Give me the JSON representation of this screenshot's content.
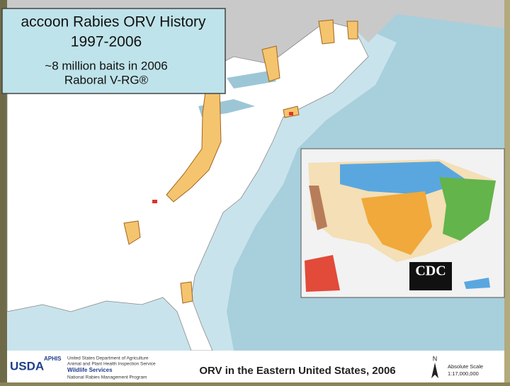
{
  "title_box": {
    "title": "accoon Rabies ORV History",
    "years": "1997-2006",
    "baits": "~8 million baits in 2006",
    "vaccine": "Raboral V-RG®"
  },
  "inset": {
    "logo": "CDC"
  },
  "footer": {
    "usda": "USDA",
    "aphis": "APHIS",
    "agency_lines": [
      "United States Department of Agriculture",
      "Animal and Plant Health Inspection Service"
    ],
    "wildlife": "Wildlife Services",
    "program": "National Rabies Management Program",
    "map_title": "ORV in the Eastern United States, 2006",
    "north": "N",
    "scale_label": "Absolute Scale",
    "scale": "1:17,000,000"
  }
}
